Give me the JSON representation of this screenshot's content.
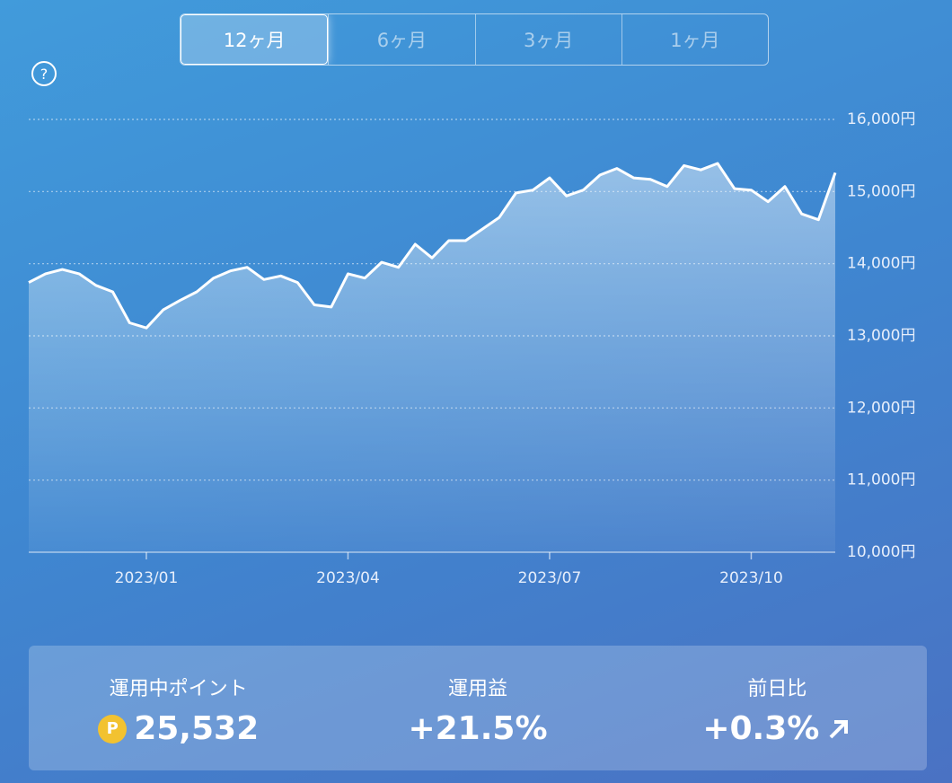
{
  "tabs": [
    "12ヶ月",
    "6ヶ月",
    "3ヶ月",
    "1ヶ月"
  ],
  "selected_tab": 0,
  "help_icon": "?",
  "chart_data": {
    "type": "area",
    "color": "#ffffff",
    "grid": true,
    "categories": [
      null,
      null,
      null,
      null,
      null,
      null,
      null,
      "2023/01",
      null,
      null,
      null,
      null,
      null,
      null,
      null,
      null,
      null,
      null,
      null,
      "2023/04",
      null,
      null,
      null,
      null,
      null,
      null,
      null,
      null,
      null,
      null,
      null,
      "2023/07",
      null,
      null,
      null,
      null,
      null,
      null,
      null,
      null,
      null,
      null,
      null,
      "2023/10",
      null,
      null,
      null,
      null,
      null
    ],
    "values": [
      13740,
      13860,
      13920,
      13860,
      13700,
      13610,
      13180,
      13110,
      13360,
      13490,
      13610,
      13800,
      13900,
      13950,
      13780,
      13830,
      13740,
      13430,
      13400,
      13860,
      13800,
      14020,
      13950,
      14270,
      14080,
      14320,
      14320,
      14480,
      14640,
      14980,
      15020,
      15190,
      14940,
      15020,
      15230,
      15320,
      15190,
      15170,
      15070,
      15360,
      15300,
      15390,
      15040,
      15020,
      14860,
      15070,
      14690,
      14610,
      15260
    ],
    "ylim": [
      10000,
      16000
    ],
    "yticks": [
      {
        "value": 10000,
        "label": "10,000円"
      },
      {
        "value": 11000,
        "label": "11,000円"
      },
      {
        "value": 12000,
        "label": "12,000円"
      },
      {
        "value": 13000,
        "label": "13,000円"
      },
      {
        "value": 14000,
        "label": "14,000円"
      },
      {
        "value": 15000,
        "label": "15,000円"
      },
      {
        "value": 16000,
        "label": "16,000円"
      }
    ]
  },
  "summary": {
    "items": [
      {
        "label": "運用中ポイント",
        "icon": "P",
        "value": "25,532"
      },
      {
        "label": "運用益",
        "value": "+21.5%"
      },
      {
        "label": "前日比",
        "value": "+0.3%"
      }
    ]
  }
}
